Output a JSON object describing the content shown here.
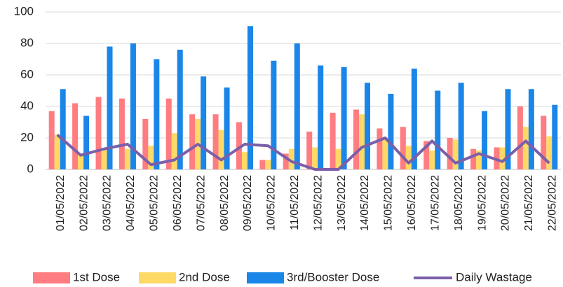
{
  "chart_data": {
    "type": "bar",
    "categories": [
      "01/05/2022",
      "02/05/2022",
      "03/05/2022",
      "04/05/2022",
      "05/05/2022",
      "06/05/2022",
      "07/05/2022",
      "08/05/2022",
      "09/05/2022",
      "10/05/2022",
      "11/05/2022",
      "12/05/2022",
      "13/05/2022",
      "14/05/2022",
      "15/05/2022",
      "16/05/2022",
      "17/05/2022",
      "18/05/2022",
      "19/05/2022",
      "20/05/2022",
      "21/05/2022",
      "22/05/2022"
    ],
    "series": [
      {
        "name": "1st Dose",
        "color": "#ff7c80",
        "values": [
          37,
          42,
          46,
          45,
          32,
          45,
          35,
          35,
          30,
          6,
          10,
          24,
          36,
          38,
          26,
          27,
          18,
          20,
          13,
          14,
          40,
          34
        ]
      },
      {
        "name": "2nd Dose",
        "color": "#ffd966",
        "values": [
          22,
          10,
          13,
          13,
          15,
          23,
          32,
          25,
          11,
          6,
          13,
          14,
          13,
          35,
          20,
          15,
          12,
          19,
          12,
          14,
          27,
          21
        ]
      },
      {
        "name": "3rd/Booster Dose",
        "color": "#1a86e8",
        "values": [
          51,
          34,
          78,
          80,
          70,
          76,
          59,
          52,
          91,
          69,
          80,
          66,
          65,
          55,
          48,
          64,
          50,
          55,
          37,
          51,
          51,
          41
        ]
      },
      {
        "name": "Daily Wastage",
        "color": "#7b5fa8",
        "type": "line",
        "values": [
          22,
          9,
          13,
          16,
          3,
          6,
          16,
          6,
          16,
          15,
          5,
          0,
          0,
          14,
          20,
          4,
          18,
          4,
          10,
          5,
          18,
          4
        ]
      }
    ],
    "ylim": [
      0,
      100
    ],
    "yticks": [
      0,
      20,
      40,
      60,
      80,
      100
    ],
    "grid": true,
    "legend": "bottom"
  }
}
